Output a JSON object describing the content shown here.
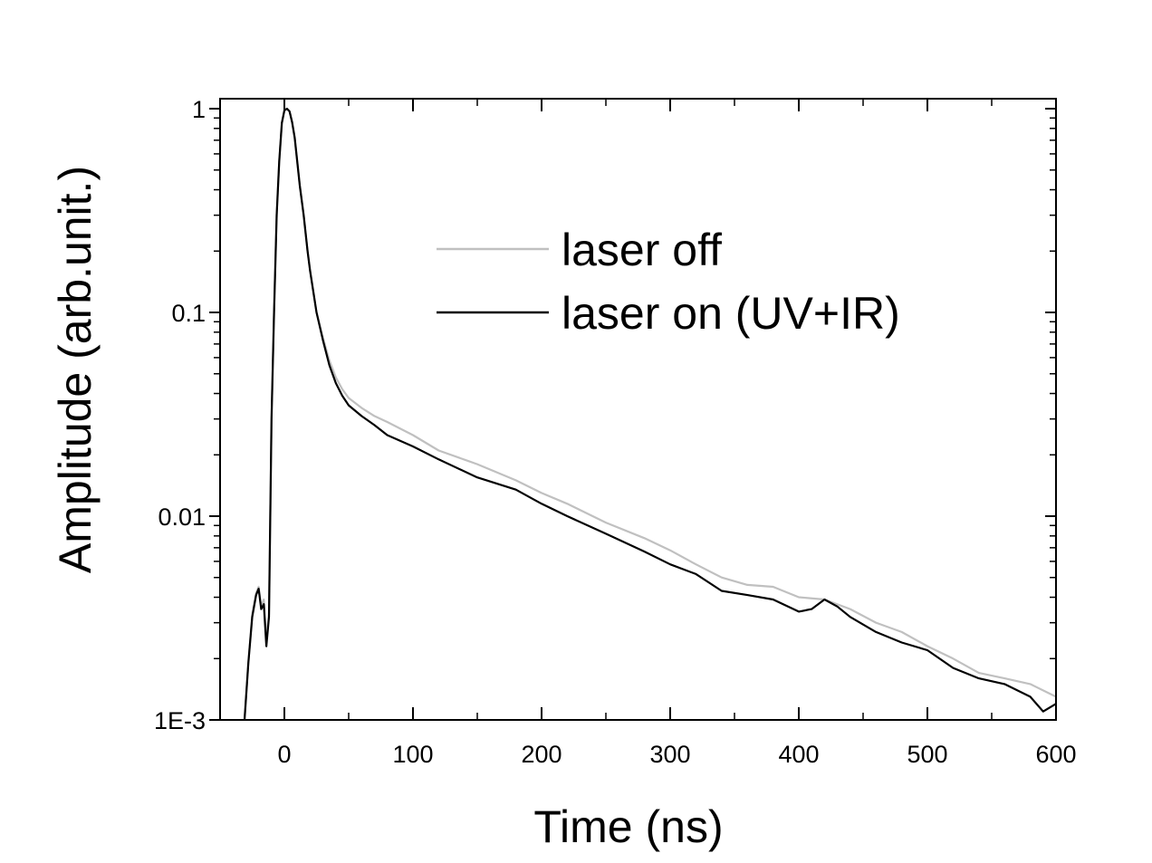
{
  "chart_data": {
    "type": "line",
    "xlabel": "Time (ns)",
    "ylabel": "Amplitude (arb.unit.)",
    "xlim": [
      -50,
      600
    ],
    "ylim": [
      0.001,
      1.1
    ],
    "yscale": "log",
    "x_ticks": [
      0,
      100,
      200,
      300,
      400,
      500,
      600
    ],
    "x_tick_labels": [
      "0",
      "100",
      "200",
      "300",
      "400",
      "500",
      "600"
    ],
    "y_ticks": [
      0.001,
      0.01,
      0.1,
      1
    ],
    "y_tick_labels": [
      "1E-3",
      "0.01",
      "0.1",
      "1"
    ],
    "grid": false,
    "legend_position": "upper-right",
    "series": [
      {
        "name": "laser off",
        "color": "#c0c0c0",
        "x": [
          -31,
          -28,
          -25,
          -22,
          -20,
          -18,
          -16,
          -14,
          -12,
          -10,
          -8,
          -6,
          -4,
          -2,
          0,
          2,
          4,
          6,
          8,
          10,
          12,
          15,
          18,
          20,
          25,
          30,
          35,
          40,
          45,
          50,
          60,
          70,
          80,
          100,
          120,
          150,
          180,
          200,
          220,
          250,
          280,
          300,
          320,
          340,
          360,
          380,
          400,
          420,
          440,
          460,
          480,
          500,
          520,
          540,
          560,
          580,
          600
        ],
        "y": [
          0.001,
          0.0019,
          0.0033,
          0.0042,
          0.0045,
          0.0036,
          0.0039,
          0.0025,
          0.0033,
          0.03,
          0.1,
          0.3,
          0.55,
          0.85,
          0.98,
          1.0,
          0.97,
          0.86,
          0.72,
          0.55,
          0.42,
          0.3,
          0.2,
          0.16,
          0.1,
          0.075,
          0.058,
          0.048,
          0.042,
          0.038,
          0.034,
          0.031,
          0.029,
          0.025,
          0.021,
          0.018,
          0.015,
          0.013,
          0.0115,
          0.0093,
          0.0078,
          0.0068,
          0.0058,
          0.005,
          0.0046,
          0.0045,
          0.004,
          0.0039,
          0.0035,
          0.003,
          0.0027,
          0.0023,
          0.002,
          0.0017,
          0.0016,
          0.0015,
          0.0013
        ]
      },
      {
        "name": "laser on (UV+IR)",
        "color": "#000000",
        "x": [
          -31,
          -28,
          -25,
          -22,
          -20,
          -18,
          -16,
          -14,
          -12,
          -10,
          -8,
          -6,
          -4,
          -2,
          0,
          2,
          4,
          6,
          8,
          10,
          12,
          15,
          18,
          20,
          25,
          30,
          35,
          40,
          45,
          50,
          60,
          70,
          80,
          100,
          120,
          150,
          180,
          200,
          220,
          250,
          280,
          300,
          320,
          340,
          360,
          380,
          400,
          410,
          420,
          430,
          440,
          460,
          480,
          500,
          520,
          540,
          560,
          580,
          590,
          600
        ],
        "y": [
          0.001,
          0.0019,
          0.0032,
          0.0041,
          0.0044,
          0.0035,
          0.0037,
          0.0023,
          0.0032,
          0.03,
          0.1,
          0.3,
          0.55,
          0.85,
          0.98,
          1.0,
          0.97,
          0.86,
          0.72,
          0.55,
          0.42,
          0.3,
          0.2,
          0.16,
          0.1,
          0.073,
          0.055,
          0.045,
          0.039,
          0.035,
          0.031,
          0.028,
          0.025,
          0.022,
          0.019,
          0.0155,
          0.0135,
          0.0115,
          0.01,
          0.0082,
          0.0067,
          0.0058,
          0.0052,
          0.0043,
          0.0041,
          0.0039,
          0.0034,
          0.0035,
          0.0039,
          0.0036,
          0.0032,
          0.0027,
          0.0024,
          0.0022,
          0.0018,
          0.0016,
          0.0015,
          0.0013,
          0.0011,
          0.0012
        ]
      }
    ]
  }
}
